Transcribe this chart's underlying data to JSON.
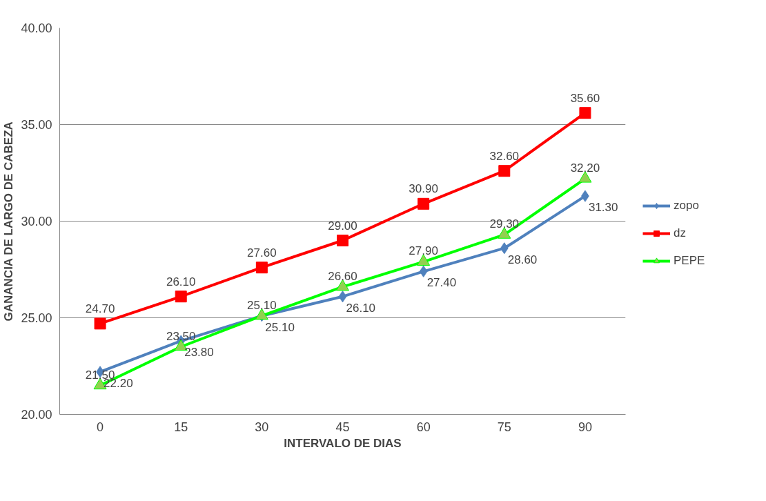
{
  "chart_data": {
    "type": "line",
    "xlabel": "INTERVALO DE DIAS",
    "ylabel": "GANANCIA DE LARGO DE CABEZA",
    "categories": [
      "0",
      "15",
      "30",
      "45",
      "60",
      "75",
      "90"
    ],
    "ylim": [
      20,
      40
    ],
    "yticks": [
      {
        "value": 20,
        "label": "20.00"
      },
      {
        "value": 25,
        "label": "25.00"
      },
      {
        "value": 30,
        "label": "30.00"
      },
      {
        "value": 35,
        "label": "35.00"
      },
      {
        "value": 40,
        "label": "40.00"
      }
    ],
    "grid": "y",
    "legend": "right",
    "series": [
      {
        "name": "zopo",
        "color": "#4f81bd",
        "marker": "diamond",
        "values": [
          22.2,
          23.8,
          25.1,
          26.1,
          27.4,
          28.6,
          31.3
        ],
        "value_labels": [
          "22.20",
          "23.80",
          "25.10",
          "26.10",
          "27.40",
          "28.60",
          "31.30"
        ]
      },
      {
        "name": "dz",
        "color": "#ff0000",
        "marker": "square",
        "values": [
          24.7,
          26.1,
          27.6,
          29.0,
          30.9,
          32.6,
          35.6
        ],
        "value_labels": [
          "24.70",
          "26.10",
          "27.60",
          "29.00",
          "30.90",
          "32.60",
          "35.60"
        ]
      },
      {
        "name": "PEPE",
        "color": "#00ff00",
        "marker": "triangle",
        "values": [
          21.5,
          23.5,
          25.1,
          26.6,
          27.9,
          29.3,
          32.2
        ],
        "value_labels": [
          "21.50",
          "23.50",
          "25.10",
          "26.60",
          "27.90",
          "29.30",
          "32.20"
        ]
      }
    ]
  }
}
